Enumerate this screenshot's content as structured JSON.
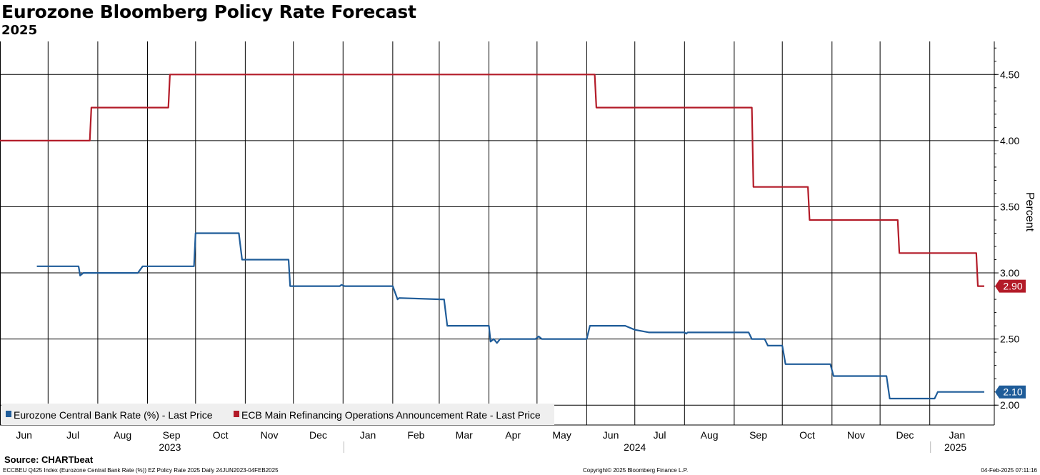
{
  "header": {
    "title": "Eurozone Bloomberg Policy Rate Forecast",
    "subtitle": "2025"
  },
  "chart_data": {
    "type": "line",
    "ylabel": "Percent",
    "ylim": [
      1.85,
      4.75
    ],
    "y_ticks": [
      "2.00",
      "2.50",
      "3.00",
      "3.50",
      "4.00",
      "4.50"
    ],
    "x_range": [
      "2023-06-01",
      "2025-02-04"
    ],
    "x_month_labels": [
      "Jun",
      "Jul",
      "Aug",
      "Sep",
      "Oct",
      "Nov",
      "Dec",
      "Jan",
      "Feb",
      "Mar",
      "Apr",
      "May",
      "Jun",
      "Jul",
      "Aug",
      "Sep",
      "Oct",
      "Nov",
      "Dec",
      "Jan"
    ],
    "x_month_dates": [
      "2023-06-01",
      "2023-07-01",
      "2023-08-01",
      "2023-09-01",
      "2023-10-01",
      "2023-11-01",
      "2023-12-01",
      "2024-01-01",
      "2024-02-01",
      "2024-03-01",
      "2024-04-01",
      "2024-05-01",
      "2024-06-01",
      "2024-07-01",
      "2024-08-01",
      "2024-09-01",
      "2024-10-01",
      "2024-11-01",
      "2024-12-01",
      "2025-01-01"
    ],
    "x_year_labels": [
      {
        "label": "2023",
        "date": "2023-09-15"
      },
      {
        "label": "2024",
        "date": "2024-07-01"
      },
      {
        "label": "2025",
        "date": "2025-01-17"
      }
    ],
    "series": [
      {
        "name": "Eurozone Central Bank Rate (%) - Last Price",
        "color": "#1f5c99",
        "last_label": "2.10",
        "points": [
          [
            "2023-06-24",
            3.05
          ],
          [
            "2023-07-20",
            3.05
          ],
          [
            "2023-07-21",
            2.98
          ],
          [
            "2023-07-23",
            3.0
          ],
          [
            "2023-08-26",
            3.0
          ],
          [
            "2023-08-29",
            3.05
          ],
          [
            "2023-09-30",
            3.05
          ],
          [
            "2023-10-01",
            3.3
          ],
          [
            "2023-10-28",
            3.3
          ],
          [
            "2023-10-30",
            3.1
          ],
          [
            "2023-11-28",
            3.1
          ],
          [
            "2023-11-29",
            2.9
          ],
          [
            "2023-12-30",
            2.9
          ],
          [
            "2023-12-31",
            2.91
          ],
          [
            "2024-01-02",
            2.9
          ],
          [
            "2024-01-30",
            2.9
          ],
          [
            "2024-02-01",
            2.9
          ],
          [
            "2024-02-04",
            2.8
          ],
          [
            "2024-02-05",
            2.81
          ],
          [
            "2024-03-02",
            2.8
          ],
          [
            "2024-03-04",
            2.8
          ],
          [
            "2024-03-06",
            2.6
          ],
          [
            "2024-04-01",
            2.6
          ],
          [
            "2024-04-02",
            2.48
          ],
          [
            "2024-04-04",
            2.5
          ],
          [
            "2024-04-06",
            2.47
          ],
          [
            "2024-04-08",
            2.5
          ],
          [
            "2024-04-30",
            2.5
          ],
          [
            "2024-05-02",
            2.52
          ],
          [
            "2024-05-04",
            2.5
          ],
          [
            "2024-06-01",
            2.5
          ],
          [
            "2024-06-03",
            2.6
          ],
          [
            "2024-06-25",
            2.6
          ],
          [
            "2024-07-01",
            2.57
          ],
          [
            "2024-07-10",
            2.55
          ],
          [
            "2024-08-01",
            2.55
          ],
          [
            "2024-08-02",
            2.54
          ],
          [
            "2024-08-03",
            2.55
          ],
          [
            "2024-09-10",
            2.55
          ],
          [
            "2024-09-12",
            2.5
          ],
          [
            "2024-09-20",
            2.5
          ],
          [
            "2024-09-22",
            2.45
          ],
          [
            "2024-10-01",
            2.45
          ],
          [
            "2024-10-03",
            2.31
          ],
          [
            "2024-10-31",
            2.31
          ],
          [
            "2024-11-02",
            2.22
          ],
          [
            "2024-12-05",
            2.22
          ],
          [
            "2024-12-07",
            2.05
          ],
          [
            "2025-01-04",
            2.05
          ],
          [
            "2025-01-06",
            2.1
          ],
          [
            "2025-02-04",
            2.1
          ]
        ]
      },
      {
        "name": "ECB Main Refinancing Operations Announcement Rate - Last Price",
        "color": "#b31b28",
        "last_label": "2.90",
        "points": [
          [
            "2023-06-01",
            4.0
          ],
          [
            "2023-07-27",
            4.0
          ],
          [
            "2023-07-28",
            4.25
          ],
          [
            "2023-09-14",
            4.25
          ],
          [
            "2023-09-15",
            4.5
          ],
          [
            "2024-06-06",
            4.5
          ],
          [
            "2024-06-07",
            4.25
          ],
          [
            "2024-09-12",
            4.25
          ],
          [
            "2024-09-13",
            3.65
          ],
          [
            "2024-10-17",
            3.65
          ],
          [
            "2024-10-18",
            3.4
          ],
          [
            "2024-12-12",
            3.4
          ],
          [
            "2024-12-13",
            3.15
          ],
          [
            "2025-01-30",
            3.15
          ],
          [
            "2025-01-31",
            2.9
          ],
          [
            "2025-02-04",
            2.9
          ]
        ]
      }
    ]
  },
  "source": "Source: CHARTbeat",
  "footer": {
    "left": "ECCBEU Q425 Index (Eurozone Central Bank Rate (%)) EZ Policy Rate 2025  Daily 24JUN2023-04FEB2025",
    "center": "Copyright© 2025 Bloomberg Finance L.P.",
    "right": "04-Feb-2025 07:11:16"
  }
}
